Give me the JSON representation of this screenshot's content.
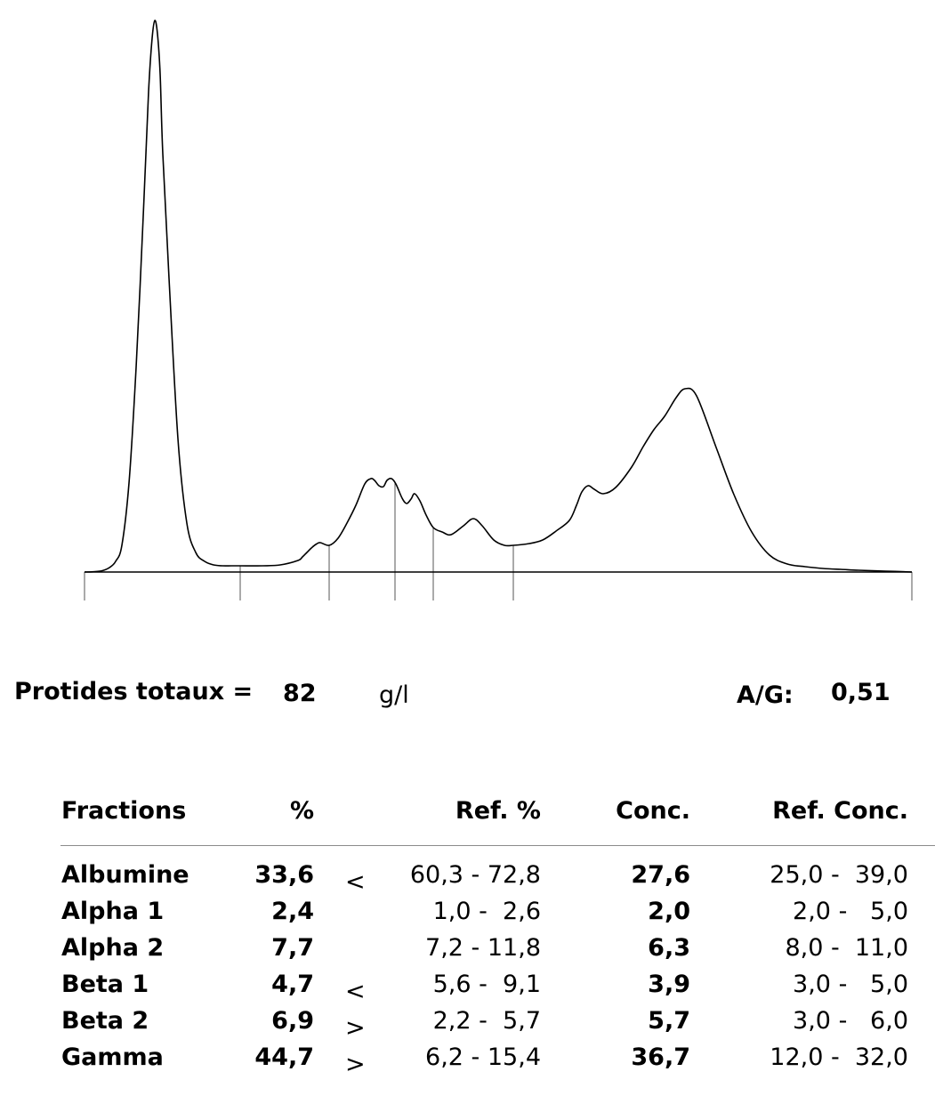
{
  "chart_data": {
    "type": "area",
    "title": "",
    "xlabel": "",
    "ylabel": "",
    "fraction_boundaries": [
      0,
      175,
      275,
      349,
      392,
      482,
      930
    ],
    "curve": {
      "x": [
        0,
        10,
        20,
        28,
        35,
        42,
        50,
        58,
        66,
        72,
        76,
        79,
        82,
        85,
        88,
        95,
        105,
        115,
        125,
        135,
        145,
        155,
        165,
        175,
        200,
        220,
        240,
        245,
        250,
        255,
        260,
        265,
        275,
        285,
        295,
        305,
        315,
        322,
        326,
        331,
        336,
        340,
        345,
        350,
        357,
        362,
        367,
        371,
        377,
        384,
        392,
        402,
        412,
        426,
        437,
        447,
        460,
        472,
        482,
        500,
        515,
        530,
        545,
        553,
        559,
        566,
        573,
        583,
        597,
        615,
        628,
        640,
        652,
        665,
        675,
        688,
        710,
        730,
        750,
        770,
        790,
        810,
        830,
        850,
        870,
        900,
        930
      ],
      "y": [
        0,
        0.3,
        1.5,
        5,
        12,
        30,
        100,
        230,
        400,
        540,
        600,
        620,
        605,
        560,
        470,
        330,
        150,
        55,
        22,
        12,
        8,
        7,
        7,
        7,
        7,
        8,
        13,
        17,
        22,
        27,
        31,
        33,
        30,
        38,
        55,
        75,
        99,
        105,
        103,
        97,
        96,
        103,
        105,
        99,
        83,
        77,
        82,
        88,
        80,
        64,
        50,
        45,
        42,
        52,
        60,
        52,
        36,
        30,
        30,
        32,
        36,
        46,
        58,
        75,
        90,
        97,
        93,
        88,
        95,
        118,
        141,
        160,
        175,
        196,
        206,
        198,
        140,
        87,
        45,
        19,
        9,
        6,
        4,
        3,
        2,
        1,
        0
      ]
    }
  },
  "summary": {
    "total_label": "Protides totaux =",
    "total_value": "82",
    "total_unit": "g/l",
    "ag_label": "A/G:",
    "ag_value": "0,51"
  },
  "table": {
    "headers": {
      "fraction": "Fractions",
      "percent": "%",
      "ref_percent": "Ref. %",
      "conc": "Conc.",
      "ref_conc": "Ref. Conc."
    },
    "rows": [
      {
        "name": "Albumine",
        "percent": "33,6",
        "flag": "<",
        "ref_percent": "60,3 - 72,8",
        "conc": "27,6",
        "ref_conc": "25,0 -  39,0"
      },
      {
        "name": "Alpha 1",
        "percent": "2,4",
        "flag": "",
        "ref_percent": "1,0 -  2,6",
        "conc": "2,0",
        "ref_conc": "2,0 -   5,0"
      },
      {
        "name": "Alpha 2",
        "percent": "7,7",
        "flag": "",
        "ref_percent": "7,2 - 11,8",
        "conc": "6,3",
        "ref_conc": "8,0 -  11,0"
      },
      {
        "name": "Beta 1",
        "percent": "4,7",
        "flag": "<",
        "ref_percent": "5,6 -  9,1",
        "conc": "3,9",
        "ref_conc": "3,0 -   5,0"
      },
      {
        "name": "Beta 2",
        "percent": "6,9",
        "flag": ">",
        "ref_percent": "2,2 -  5,7",
        "conc": "5,7",
        "ref_conc": "3,0 -   6,0"
      },
      {
        "name": "Gamma",
        "percent": "44,7",
        "flag": ">",
        "ref_percent": "6,2 - 15,4",
        "conc": "36,7",
        "ref_conc": "12,0 -  32,0"
      }
    ]
  }
}
